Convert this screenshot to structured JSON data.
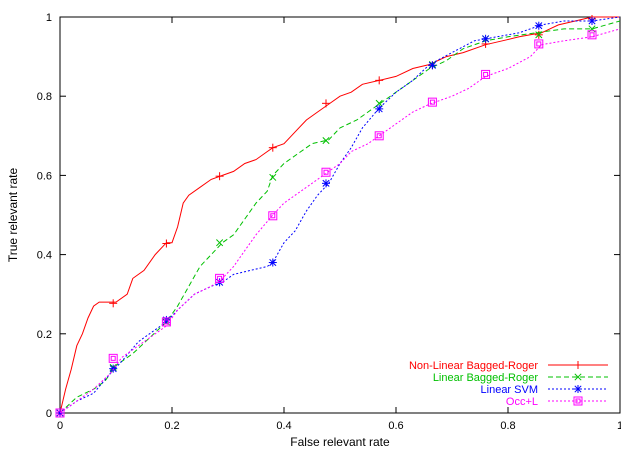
{
  "chart_data": {
    "type": "line",
    "title": "",
    "xlabel": "False relevant rate",
    "ylabel": "True relevant rate",
    "xlim": [
      0,
      1
    ],
    "ylim": [
      0,
      1
    ],
    "xticks": [
      "0",
      "0.2",
      "0.4",
      "0.6",
      "0.8",
      "1"
    ],
    "yticks": [
      "0",
      "0.2",
      "0.4",
      "0.6",
      "0.8",
      "1"
    ],
    "grid": false,
    "legend_position": "bottom-right",
    "series": [
      {
        "name": "Non-Linear Bagged-Roger",
        "color": "#ff0000",
        "dash": "solid",
        "marker": "plus",
        "x": [
          0,
          0.01,
          0.02,
          0.03,
          0.04,
          0.05,
          0.06,
          0.07,
          0.08,
          0.1,
          0.12,
          0.13,
          0.15,
          0.17,
          0.19,
          0.2,
          0.21,
          0.22,
          0.23,
          0.25,
          0.27,
          0.29,
          0.31,
          0.33,
          0.35,
          0.37,
          0.38,
          0.4,
          0.42,
          0.44,
          0.46,
          0.48,
          0.5,
          0.52,
          0.54,
          0.57,
          0.6,
          0.63,
          0.66,
          0.69,
          0.72,
          0.76,
          0.79,
          0.82,
          0.86,
          0.89,
          0.92,
          0.95,
          0.98,
          1.0
        ],
        "y": [
          0,
          0.06,
          0.11,
          0.17,
          0.2,
          0.24,
          0.27,
          0.28,
          0.28,
          0.28,
          0.3,
          0.34,
          0.36,
          0.4,
          0.43,
          0.43,
          0.47,
          0.53,
          0.55,
          0.57,
          0.59,
          0.6,
          0.61,
          0.63,
          0.64,
          0.66,
          0.67,
          0.68,
          0.71,
          0.74,
          0.76,
          0.78,
          0.8,
          0.81,
          0.83,
          0.84,
          0.85,
          0.87,
          0.88,
          0.9,
          0.91,
          0.93,
          0.94,
          0.95,
          0.96,
          0.98,
          0.99,
          1.0,
          1.0,
          1.0
        ],
        "marker_points": [
          [
            0,
            0
          ],
          [
            0.095,
            0.277
          ],
          [
            0.19,
            0.428
          ],
          [
            0.285,
            0.598
          ],
          [
            0.38,
            0.67
          ],
          [
            0.475,
            0.782
          ],
          [
            0.57,
            0.84
          ],
          [
            0.665,
            0.878
          ],
          [
            0.76,
            0.932
          ],
          [
            0.855,
            0.955
          ],
          [
            0.95,
            0.995
          ]
        ]
      },
      {
        "name": "Linear Bagged-Roger",
        "color": "#00c000",
        "dash": "dashed",
        "marker": "cross",
        "x": [
          0,
          0.03,
          0.06,
          0.08,
          0.1,
          0.13,
          0.16,
          0.19,
          0.21,
          0.23,
          0.25,
          0.27,
          0.29,
          0.31,
          0.33,
          0.35,
          0.37,
          0.38,
          0.4,
          0.43,
          0.45,
          0.48,
          0.5,
          0.53,
          0.55,
          0.57,
          0.6,
          0.63,
          0.66,
          0.69,
          0.72,
          0.76,
          0.8,
          0.85,
          0.9,
          0.95,
          1.0
        ],
        "y": [
          0,
          0.04,
          0.06,
          0.08,
          0.12,
          0.15,
          0.19,
          0.23,
          0.27,
          0.32,
          0.37,
          0.4,
          0.43,
          0.45,
          0.49,
          0.53,
          0.56,
          0.6,
          0.63,
          0.66,
          0.68,
          0.69,
          0.72,
          0.74,
          0.76,
          0.78,
          0.81,
          0.84,
          0.87,
          0.89,
          0.92,
          0.94,
          0.95,
          0.96,
          0.97,
          0.97,
          0.99
        ],
        "marker_points": [
          [
            0,
            0
          ],
          [
            0.095,
            0.115
          ],
          [
            0.19,
            0.23
          ],
          [
            0.285,
            0.43
          ],
          [
            0.38,
            0.595
          ],
          [
            0.475,
            0.688
          ],
          [
            0.57,
            0.782
          ],
          [
            0.665,
            0.88
          ],
          [
            0.76,
            0.945
          ],
          [
            0.855,
            0.955
          ],
          [
            0.95,
            0.97
          ]
        ]
      },
      {
        "name": "Linear SVM",
        "color": "#0000ff",
        "dash": "dotted",
        "marker": "star",
        "x": [
          0,
          0.03,
          0.06,
          0.09,
          0.11,
          0.14,
          0.17,
          0.19,
          0.21,
          0.24,
          0.27,
          0.29,
          0.31,
          0.34,
          0.37,
          0.38,
          0.4,
          0.42,
          0.44,
          0.46,
          0.48,
          0.5,
          0.52,
          0.54,
          0.57,
          0.6,
          0.63,
          0.66,
          0.7,
          0.74,
          0.78,
          0.82,
          0.86,
          0.9,
          0.95,
          1.0
        ],
        "y": [
          0,
          0.03,
          0.05,
          0.1,
          0.13,
          0.18,
          0.21,
          0.23,
          0.26,
          0.3,
          0.32,
          0.33,
          0.35,
          0.36,
          0.37,
          0.38,
          0.43,
          0.46,
          0.51,
          0.55,
          0.58,
          0.63,
          0.67,
          0.72,
          0.77,
          0.81,
          0.84,
          0.88,
          0.91,
          0.94,
          0.95,
          0.96,
          0.98,
          0.99,
          0.99,
          1.0
        ],
        "marker_points": [
          [
            0,
            0
          ],
          [
            0.095,
            0.112
          ],
          [
            0.19,
            0.235
          ],
          [
            0.285,
            0.33
          ],
          [
            0.38,
            0.38
          ],
          [
            0.475,
            0.58
          ],
          [
            0.57,
            0.768
          ],
          [
            0.665,
            0.878
          ],
          [
            0.76,
            0.945
          ],
          [
            0.855,
            0.978
          ],
          [
            0.95,
            0.99
          ]
        ]
      },
      {
        "name": "Occ+L",
        "color": "#ff00ff",
        "dash": "dotted",
        "marker": "boxed-square",
        "x": [
          0,
          0.03,
          0.06,
          0.09,
          0.11,
          0.14,
          0.17,
          0.19,
          0.21,
          0.24,
          0.27,
          0.29,
          0.31,
          0.33,
          0.35,
          0.38,
          0.4,
          0.42,
          0.44,
          0.46,
          0.48,
          0.5,
          0.52,
          0.55,
          0.57,
          0.6,
          0.63,
          0.66,
          0.7,
          0.73,
          0.76,
          0.8,
          0.84,
          0.86,
          0.9,
          0.95,
          1.0
        ],
        "y": [
          0,
          0.03,
          0.06,
          0.1,
          0.14,
          0.17,
          0.2,
          0.22,
          0.26,
          0.3,
          0.32,
          0.34,
          0.37,
          0.41,
          0.45,
          0.5,
          0.53,
          0.55,
          0.57,
          0.59,
          0.61,
          0.63,
          0.66,
          0.68,
          0.7,
          0.73,
          0.76,
          0.78,
          0.8,
          0.82,
          0.85,
          0.87,
          0.9,
          0.93,
          0.94,
          0.95,
          0.97
        ],
        "marker_points": [
          [
            0,
            0
          ],
          [
            0.095,
            0.138
          ],
          [
            0.19,
            0.23
          ],
          [
            0.285,
            0.34
          ],
          [
            0.38,
            0.498
          ],
          [
            0.475,
            0.608
          ],
          [
            0.57,
            0.7
          ],
          [
            0.665,
            0.785
          ],
          [
            0.76,
            0.855
          ],
          [
            0.855,
            0.932
          ],
          [
            0.95,
            0.955
          ]
        ]
      }
    ]
  }
}
